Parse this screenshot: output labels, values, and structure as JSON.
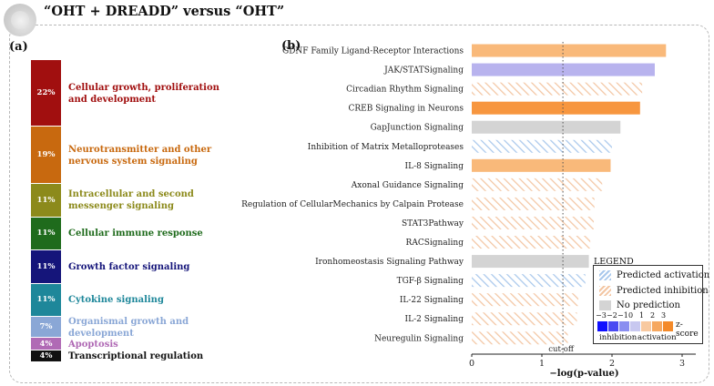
{
  "title": "“OHT + DREADD” versus “OHT”",
  "panel_a": {
    "label": "(a)",
    "segments": [
      {
        "pct": "22%",
        "value": 22,
        "name": "Cellular growth, proliferation and development",
        "color": "#a10f0f"
      },
      {
        "pct": "19%",
        "value": 19,
        "name": "Neurotransmitter and other nervous system signaling",
        "color": "#c8690f"
      },
      {
        "pct": "11%",
        "value": 11,
        "name": "Intracellular and second messenger signaling",
        "color": "#8c8a1b"
      },
      {
        "pct": "11%",
        "value": 11,
        "name": "Cellular immune response",
        "color": "#1f6b1c"
      },
      {
        "pct": "11%",
        "value": 11,
        "name": "Growth factor signaling",
        "color": "#15157a"
      },
      {
        "pct": "11%",
        "value": 11,
        "name": "Cytokine signaling",
        "color": "#1e879a"
      },
      {
        "pct": "7%",
        "value": 7,
        "name": "Organismal growth and development",
        "color": "#8aa7d6"
      },
      {
        "pct": "4%",
        "value": 4,
        "name": "Apoptosis",
        "color": "#b06ab5"
      },
      {
        "pct": "4%",
        "value": 4,
        "name": "Transcriptional regulation",
        "color": "#111111"
      }
    ]
  },
  "chart_data": {
    "type": "bar",
    "orientation": "horizontal",
    "panel_label": "(b)",
    "categories": [
      "GDNF Family Ligand-Receptor Interactions",
      "JAK/STATSignaling",
      "Circadian Rhythm Signaling",
      "CREB Signaling in Neurons",
      "GapJunction  Signaling",
      "Inhibition of Matrix Metalloproteases",
      "IL-8 Signaling",
      "Axonal Guidance Signaling",
      "Regulation of CellularMechanics  by Calpain Protease",
      "STAT3Pathway",
      "RACSignaling",
      "Ironhomeostasis  Signaling Pathway",
      "TGF-β Signaling",
      "IL-22 Signaling",
      "IL-2 Signaling",
      "Neuregulin Signaling"
    ],
    "values": [
      2.77,
      2.61,
      2.43,
      2.4,
      2.12,
      2.0,
      1.98,
      1.86,
      1.75,
      1.74,
      1.69,
      1.67,
      1.62,
      1.52,
      1.5,
      1.37
    ],
    "status": [
      "activation",
      "inhibition-strong",
      "predicted-inhibition",
      "activation-strong",
      "no-prediction",
      "predicted-activation",
      "activation",
      "predicted-inhibition",
      "predicted-inhibition",
      "predicted-inhibition",
      "predicted-inhibition",
      "no-prediction",
      "predicted-activation",
      "predicted-inhibition",
      "predicted-inhibition",
      "predicted-inhibition"
    ],
    "xlabel": "−log(p-value)",
    "xticks": [
      "0",
      "1",
      "2",
      "3"
    ],
    "xlim": [
      0,
      3.2
    ],
    "cutoff": 1.3,
    "cutoff_label": "cut-off",
    "colors": {
      "activation": "#f9b97a",
      "activation-strong": "#f7963f",
      "inhibition-strong": "#b8b3ee",
      "predicted-activation": "#a9c8ec",
      "predicted-inhibition": "#f3c6a3",
      "no-prediction": "#d4d4d4"
    },
    "legend": {
      "title": "LEGEND",
      "items": [
        "Predicted activation",
        "Predicted inhibition",
        "No prediction"
      ],
      "zscore_ticks": [
        "−3",
        "−2",
        "−1",
        "0",
        "1",
        "2",
        "3"
      ],
      "zscore_label": "z-score",
      "inhibition_label": "inhibition",
      "activation_label": "activation",
      "zscore_colors": [
        "#1010ff",
        "#4a4af2",
        "#8a8ef0",
        "#c8c8f0",
        "#f8c9a0",
        "#f6a860",
        "#f48a2a"
      ]
    }
  }
}
